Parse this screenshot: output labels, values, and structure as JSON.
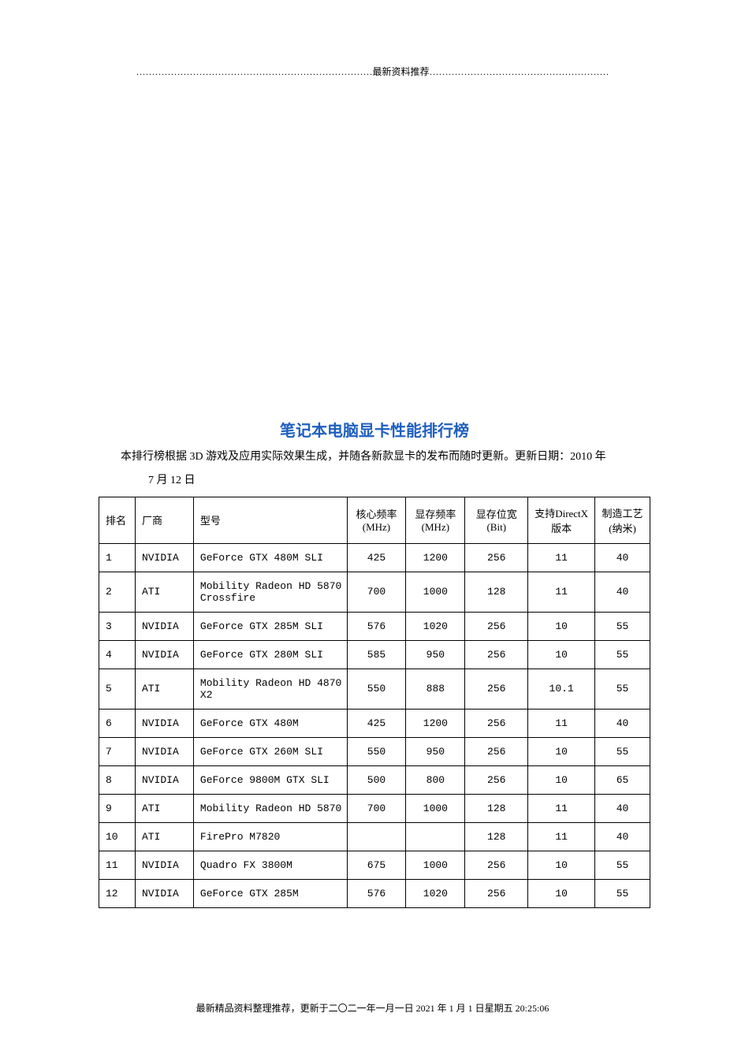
{
  "header": {
    "text": "…………………………………………………………………最新资料推荐…………………………………………………"
  },
  "title": "笔记本电脑显卡性能排行榜",
  "description": "本排行榜根据 3D 游戏及应用实际效果生成，并随各新款显卡的发布而随时更新。更新日期：2010 年",
  "date_continuation": "7 月 12 日",
  "table": {
    "columns": [
      {
        "label": "排名",
        "class": "col-rank"
      },
      {
        "label": "厂商",
        "class": "col-vendor"
      },
      {
        "label": "型号",
        "class": "col-model"
      },
      {
        "label": "核心频率(MHz)",
        "class": "col-core"
      },
      {
        "label": "显存频率(MHz)",
        "class": "col-mem"
      },
      {
        "label": "显存位宽(Bit)",
        "class": "col-bus"
      },
      {
        "label": "支持DirectX 版本",
        "class": "col-dx"
      },
      {
        "label": "制造工艺(纳米)",
        "class": "col-process"
      }
    ],
    "rows": [
      {
        "rank": "1",
        "vendor": "NVIDIA",
        "model": "GeForce GTX 480M SLI",
        "core": "425",
        "mem": "1200",
        "bus": "256",
        "dx": "11",
        "process": "40"
      },
      {
        "rank": "2",
        "vendor": "ATI",
        "model": "Mobility Radeon HD 5870 Crossfire",
        "core": "700",
        "mem": "1000",
        "bus": "128",
        "dx": "11",
        "process": "40"
      },
      {
        "rank": "3",
        "vendor": "NVIDIA",
        "model": "GeForce GTX 285M SLI",
        "core": "576",
        "mem": "1020",
        "bus": "256",
        "dx": "10",
        "process": "55"
      },
      {
        "rank": "4",
        "vendor": "NVIDIA",
        "model": "GeForce GTX 280M SLI",
        "core": "585",
        "mem": "950",
        "bus": "256",
        "dx": "10",
        "process": "55"
      },
      {
        "rank": "5",
        "vendor": "ATI",
        "model": "Mobility Radeon HD 4870 X2",
        "core": "550",
        "mem": "888",
        "bus": "256",
        "dx": "10.1",
        "process": "55"
      },
      {
        "rank": "6",
        "vendor": "NVIDIA",
        "model": "GeForce GTX 480M",
        "core": "425",
        "mem": "1200",
        "bus": "256",
        "dx": "11",
        "process": "40"
      },
      {
        "rank": "7",
        "vendor": "NVIDIA",
        "model": "GeForce GTX 260M SLI",
        "core": "550",
        "mem": "950",
        "bus": "256",
        "dx": "10",
        "process": "55"
      },
      {
        "rank": "8",
        "vendor": "NVIDIA",
        "model": "GeForce 9800M GTX SLI",
        "core": "500",
        "mem": "800",
        "bus": "256",
        "dx": "10",
        "process": "65"
      },
      {
        "rank": "9",
        "vendor": "ATI",
        "model": "Mobility Radeon HD 5870",
        "core": "700",
        "mem": "1000",
        "bus": "128",
        "dx": "11",
        "process": "40"
      },
      {
        "rank": "10",
        "vendor": "ATI",
        "model": "FirePro M7820",
        "core": "",
        "mem": "",
        "bus": "128",
        "dx": "11",
        "process": "40"
      },
      {
        "rank": "11",
        "vendor": "NVIDIA",
        "model": "Quadro FX 3800M",
        "core": "675",
        "mem": "1000",
        "bus": "256",
        "dx": "10",
        "process": "55"
      },
      {
        "rank": "12",
        "vendor": "NVIDIA",
        "model": "GeForce GTX 285M",
        "core": "576",
        "mem": "1020",
        "bus": "256",
        "dx": "10",
        "process": "55"
      }
    ]
  },
  "footer": {
    "text": "最新精品资料整理推荐，更新于二〇二一年一月一日 2021 年 1 月 1 日星期五 20:25:06"
  },
  "styles": {
    "title_color": "#1f5fbf",
    "border_color": "#000000",
    "background_color": "#ffffff",
    "text_color": "#000000"
  }
}
